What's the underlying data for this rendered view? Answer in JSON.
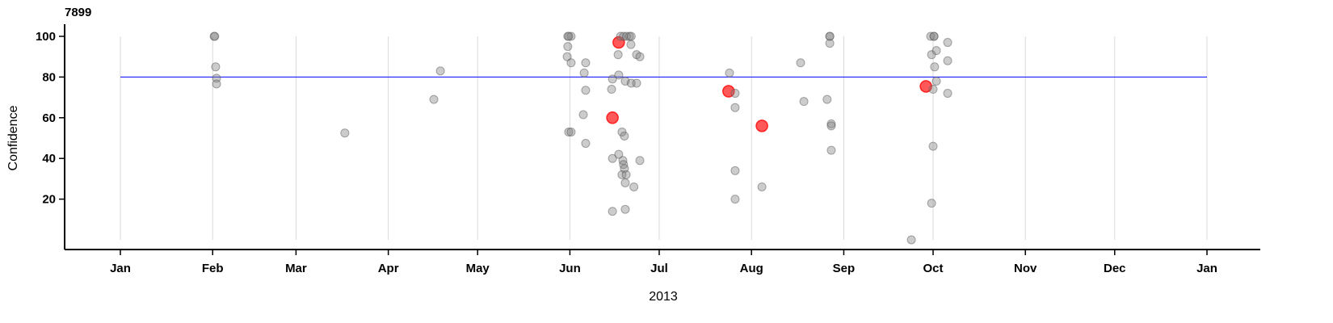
{
  "chart_data": {
    "type": "scatter",
    "title": "7899",
    "xlabel": "2013",
    "ylabel": "Confidence",
    "x_units": "day of year 2013 (0 = Jan 1)",
    "xlim": [
      0,
      365
    ],
    "ylim": [
      0,
      100
    ],
    "x_ticks": [
      {
        "label": "Jan",
        "day": 0
      },
      {
        "label": "Feb",
        "day": 31
      },
      {
        "label": "Mar",
        "day": 59
      },
      {
        "label": "Apr",
        "day": 90
      },
      {
        "label": "May",
        "day": 120
      },
      {
        "label": "Jun",
        "day": 151
      },
      {
        "label": "Jul",
        "day": 181
      },
      {
        "label": "Aug",
        "day": 212
      },
      {
        "label": "Sep",
        "day": 243
      },
      {
        "label": "Oct",
        "day": 273
      },
      {
        "label": "Nov",
        "day": 304
      },
      {
        "label": "Dec",
        "day": 334
      },
      {
        "label": "Jan",
        "day": 365
      }
    ],
    "y_ticks": [
      20,
      40,
      60,
      80,
      100
    ],
    "reference_line": 80,
    "grid": "vertical",
    "colors": {
      "point": "#808080",
      "highlight": "#ff2020",
      "reference": "#0000ff",
      "grid": "#d9d9d9"
    },
    "points": [
      [
        31.5,
        100,
        0
      ],
      [
        31.7,
        100,
        0
      ],
      [
        32,
        85,
        0
      ],
      [
        32.3,
        79.4,
        0
      ],
      [
        32.3,
        76.6,
        0
      ],
      [
        75.4,
        52.5,
        0
      ],
      [
        105.3,
        69,
        0
      ],
      [
        107.5,
        83,
        0
      ],
      [
        150.3,
        100,
        0
      ],
      [
        151.4,
        100,
        0
      ],
      [
        150.6,
        100,
        0
      ],
      [
        150.3,
        95,
        0
      ],
      [
        150.1,
        90,
        0
      ],
      [
        151.4,
        87,
        0
      ],
      [
        156.3,
        87,
        0
      ],
      [
        155.8,
        82,
        0
      ],
      [
        156.3,
        73.5,
        0
      ],
      [
        155.5,
        61.5,
        0
      ],
      [
        150.6,
        53,
        0
      ],
      [
        151.4,
        53,
        0
      ],
      [
        156.3,
        47.4,
        0
      ],
      [
        165.3,
        60,
        1
      ],
      [
        167.4,
        97,
        1
      ],
      [
        165,
        74,
        0
      ],
      [
        165.3,
        79,
        0
      ],
      [
        167.4,
        81,
        0
      ],
      [
        167.2,
        91,
        0
      ],
      [
        168,
        100,
        0
      ],
      [
        169,
        100,
        0
      ],
      [
        170,
        100,
        0
      ],
      [
        171,
        100,
        0
      ],
      [
        171.6,
        100,
        0
      ],
      [
        169.6,
        78,
        0
      ],
      [
        171.6,
        77,
        0
      ],
      [
        173.4,
        77,
        0
      ],
      [
        171.5,
        96,
        0
      ],
      [
        173.4,
        91,
        0
      ],
      [
        174.5,
        90,
        0
      ],
      [
        168.5,
        53,
        0
      ],
      [
        169.3,
        51,
        0
      ],
      [
        167.4,
        42,
        0
      ],
      [
        165.3,
        40,
        0
      ],
      [
        168.8,
        39,
        0
      ],
      [
        169,
        37,
        0
      ],
      [
        169.3,
        35,
        0
      ],
      [
        168.5,
        32,
        0
      ],
      [
        169.9,
        32,
        0
      ],
      [
        174.5,
        39,
        0
      ],
      [
        169.6,
        28,
        0
      ],
      [
        172.5,
        26,
        0
      ],
      [
        165.3,
        14,
        0
      ],
      [
        169.6,
        15,
        0
      ],
      [
        204.6,
        82,
        0
      ],
      [
        204.3,
        73,
        1
      ],
      [
        206.5,
        72,
        0
      ],
      [
        206.5,
        65,
        0
      ],
      [
        206.5,
        34,
        0
      ],
      [
        206.5,
        20,
        0
      ],
      [
        215.5,
        56,
        1
      ],
      [
        215.5,
        26,
        0
      ],
      [
        228.5,
        87,
        0
      ],
      [
        229.6,
        68,
        0
      ],
      [
        238.3,
        100,
        0
      ],
      [
        238.3,
        100,
        0
      ],
      [
        238.3,
        96.6,
        0
      ],
      [
        237.4,
        69,
        0
      ],
      [
        238.8,
        57,
        0
      ],
      [
        238.8,
        56,
        0
      ],
      [
        238.8,
        44,
        0
      ],
      [
        265.7,
        0,
        0
      ],
      [
        270.6,
        75.4,
        1
      ],
      [
        272.2,
        100,
        0
      ],
      [
        273.3,
        100,
        0
      ],
      [
        273.3,
        100,
        0
      ],
      [
        272.5,
        91,
        0
      ],
      [
        274.1,
        93,
        0
      ],
      [
        273.5,
        85,
        0
      ],
      [
        274.1,
        78,
        0
      ],
      [
        273,
        74,
        0
      ],
      [
        273,
        46,
        0
      ],
      [
        272.5,
        18,
        0
      ],
      [
        277.9,
        97,
        0
      ],
      [
        277.9,
        88,
        0
      ],
      [
        277.9,
        72,
        0
      ]
    ]
  }
}
